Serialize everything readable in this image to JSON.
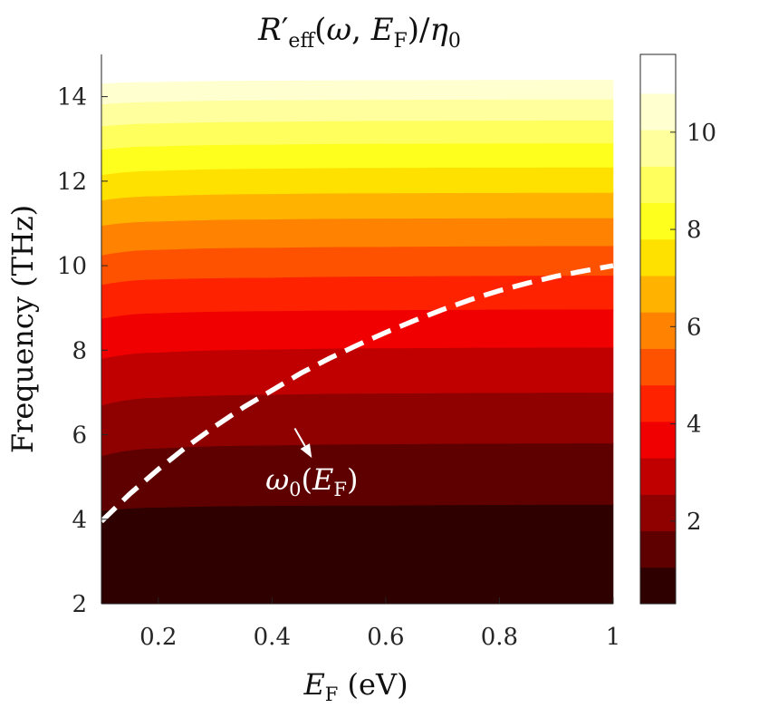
{
  "chart_data": {
    "type": "heatmap",
    "subtype": "filled-contour",
    "title": "R′eff(ω, EF)/η0",
    "title_parts": {
      "R": "R",
      "prime": "′",
      "eff": "eff",
      "open": "(",
      "omega": "ω",
      "comma": ", ",
      "E": "E",
      "F": "F",
      "close": ")/",
      "eta": "η",
      "zero": "0"
    },
    "xlabel": "EF (eV)",
    "xlabel_parts": {
      "E": "E",
      "F": "F",
      "unit": " (eV)"
    },
    "ylabel": "Frequency (THz)",
    "xlim": [
      0.1,
      1.0
    ],
    "ylim": [
      2,
      15
    ],
    "x_ticks": [
      0.2,
      0.4,
      0.6,
      0.8,
      1.0
    ],
    "x_tick_labels": [
      "0.2",
      "0.4",
      "0.6",
      "0.8",
      "1"
    ],
    "y_ticks": [
      2,
      4,
      6,
      8,
      10,
      12,
      14
    ],
    "y_tick_labels": [
      "2",
      "4",
      "6",
      "8",
      "10",
      "12",
      "14"
    ],
    "data_domain": {
      "x": [
        0.1,
        1.0
      ],
      "y": [
        2.0,
        14.5
      ]
    },
    "colormap": "hot",
    "colorbar": {
      "range": [
        0.3,
        11.6
      ],
      "ticks": [
        2,
        4,
        6,
        8,
        10
      ],
      "tick_labels": [
        "2",
        "4",
        "6",
        "8",
        "10"
      ],
      "levels": [
        0.3,
        1.05,
        1.8,
        2.55,
        3.3,
        4.05,
        4.8,
        5.55,
        6.3,
        7.05,
        7.8,
        8.55,
        9.3,
        10.05,
        10.8,
        11.6
      ],
      "level_colors": [
        "#2e0000",
        "#5e0000",
        "#8f0000",
        "#c00000",
        "#f00000",
        "#ff2200",
        "#ff5200",
        "#ff8200",
        "#ffb200",
        "#ffe100",
        "#ffff1e",
        "#ffff5e",
        "#ffff9e",
        "#ffffcf",
        "#ffffff"
      ]
    },
    "band_boundaries": [
      {
        "level": 1.05,
        "freq_at_x": [
          [
            0.1,
            4.2
          ],
          [
            0.2,
            4.28
          ],
          [
            0.4,
            4.32
          ],
          [
            0.6,
            4.33
          ],
          [
            1.0,
            4.35
          ]
        ]
      },
      {
        "level": 1.8,
        "freq_at_x": [
          [
            0.1,
            5.5
          ],
          [
            0.2,
            5.68
          ],
          [
            0.4,
            5.75
          ],
          [
            0.6,
            5.78
          ],
          [
            1.0,
            5.8
          ]
        ]
      },
      {
        "level": 2.55,
        "freq_at_x": [
          [
            0.1,
            6.7
          ],
          [
            0.2,
            6.88
          ],
          [
            0.4,
            6.95
          ],
          [
            0.6,
            6.98
          ],
          [
            1.0,
            7.0
          ]
        ]
      },
      {
        "level": 3.3,
        "freq_at_x": [
          [
            0.1,
            7.8
          ],
          [
            0.2,
            7.95
          ],
          [
            0.4,
            8.02
          ],
          [
            0.6,
            8.05
          ],
          [
            1.0,
            8.07
          ]
        ]
      },
      {
        "level": 4.05,
        "freq_at_x": [
          [
            0.1,
            8.75
          ],
          [
            0.2,
            8.88
          ],
          [
            0.4,
            8.93
          ],
          [
            0.6,
            8.95
          ],
          [
            1.0,
            8.97
          ]
        ]
      },
      {
        "level": 4.8,
        "freq_at_x": [
          [
            0.1,
            9.55
          ],
          [
            0.2,
            9.68
          ],
          [
            0.4,
            9.72
          ],
          [
            0.6,
            9.75
          ],
          [
            1.0,
            9.77
          ]
        ]
      },
      {
        "level": 5.55,
        "freq_at_x": [
          [
            0.1,
            10.25
          ],
          [
            0.2,
            10.38
          ],
          [
            0.4,
            10.43
          ],
          [
            0.6,
            10.45
          ],
          [
            1.0,
            10.47
          ]
        ]
      },
      {
        "level": 6.3,
        "freq_at_x": [
          [
            0.1,
            10.95
          ],
          [
            0.2,
            11.05
          ],
          [
            0.4,
            11.1
          ],
          [
            0.6,
            11.12
          ],
          [
            1.0,
            11.13
          ]
        ]
      },
      {
        "level": 7.05,
        "freq_at_x": [
          [
            0.1,
            11.55
          ],
          [
            0.2,
            11.65
          ],
          [
            0.4,
            11.7
          ],
          [
            0.6,
            11.72
          ],
          [
            1.0,
            11.73
          ]
        ]
      },
      {
        "level": 7.8,
        "freq_at_x": [
          [
            0.1,
            12.15
          ],
          [
            0.2,
            12.25
          ],
          [
            0.4,
            12.3
          ],
          [
            0.6,
            12.32
          ],
          [
            1.0,
            12.33
          ]
        ]
      },
      {
        "level": 8.55,
        "freq_at_x": [
          [
            0.1,
            12.75
          ],
          [
            0.2,
            12.83
          ],
          [
            0.4,
            12.87
          ],
          [
            0.6,
            12.89
          ],
          [
            1.0,
            12.9
          ]
        ]
      },
      {
        "level": 9.3,
        "freq_at_x": [
          [
            0.1,
            13.3
          ],
          [
            0.2,
            13.37
          ],
          [
            0.4,
            13.41
          ],
          [
            0.6,
            13.43
          ],
          [
            1.0,
            13.44
          ]
        ]
      },
      {
        "level": 10.05,
        "freq_at_x": [
          [
            0.1,
            13.82
          ],
          [
            0.2,
            13.88
          ],
          [
            0.4,
            13.92
          ],
          [
            0.6,
            13.93
          ],
          [
            1.0,
            13.94
          ]
        ]
      },
      {
        "level": 10.8,
        "freq_at_x": [
          [
            0.1,
            14.3
          ],
          [
            0.2,
            14.34
          ],
          [
            0.4,
            14.37
          ],
          [
            0.6,
            14.38
          ],
          [
            1.0,
            14.39
          ]
        ]
      }
    ],
    "series": [
      {
        "name": "ω0(EF)",
        "style": "dashed",
        "color": "#ffffff",
        "x": [
          0.1,
          0.15,
          0.2,
          0.25,
          0.3,
          0.35,
          0.4,
          0.45,
          0.5,
          0.55,
          0.6,
          0.65,
          0.7,
          0.75,
          0.8,
          0.85,
          0.9,
          0.95,
          1.0
        ],
        "y": [
          3.95,
          4.6,
          5.18,
          5.72,
          6.2,
          6.65,
          7.05,
          7.45,
          7.8,
          8.12,
          8.42,
          8.7,
          8.96,
          9.2,
          9.41,
          9.59,
          9.75,
          9.88,
          10.0
        ]
      }
    ],
    "annotations": [
      {
        "text": "ω0(EF)",
        "parts": {
          "omega": "ω",
          "zero": "0",
          "open": "(",
          "E": "E",
          "F": "F",
          "close": ")"
        },
        "x": 0.47,
        "y": 4.7,
        "color": "#ffffff",
        "arrow_from": [
          0.44,
          6.15
        ],
        "arrow_to": [
          0.47,
          5.45
        ]
      }
    ],
    "grid": false
  }
}
